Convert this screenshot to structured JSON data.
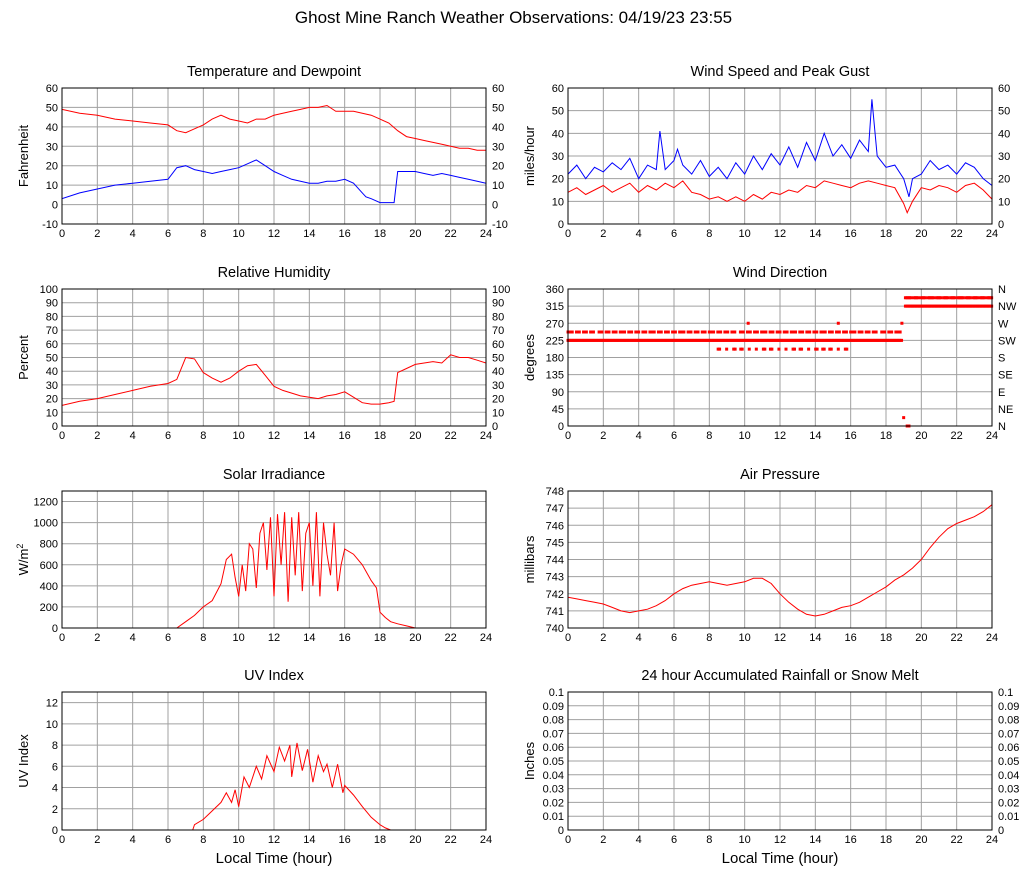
{
  "page": {
    "title": "Ghost Mine Ranch Weather Observations: 04/19/23 23:55",
    "xlabel": "Local Time (hour)"
  },
  "colors": {
    "red": "#ff0000",
    "blue": "#0000ff",
    "grid": "#a0a0a0",
    "axis": "#000000"
  },
  "chart_data": [
    {
      "id": "temp",
      "type": "line",
      "title": "Temperature and Dewpoint",
      "ylabel": "Fahrenheit",
      "xlim": [
        0,
        24
      ],
      "ylim": [
        -10,
        60
      ],
      "xticks": [
        0,
        2,
        4,
        6,
        8,
        10,
        12,
        14,
        16,
        18,
        20,
        22,
        24
      ],
      "yticks": [
        -10,
        0,
        10,
        20,
        30,
        40,
        50,
        60
      ],
      "right_axis": true,
      "grid": true,
      "series": [
        {
          "color": "#ff0000",
          "x": [
            0,
            1,
            2,
            3,
            4,
            5,
            6,
            6.5,
            7,
            7.5,
            8,
            8.5,
            9,
            9.5,
            10,
            10.5,
            11,
            11.5,
            12,
            12.5,
            13,
            13.5,
            14,
            14.5,
            15,
            15.5,
            16,
            16.5,
            17,
            17.5,
            18,
            18.5,
            19,
            19.5,
            20,
            20.5,
            21,
            21.5,
            22,
            22.5,
            23,
            23.5,
            24
          ],
          "y": [
            49,
            47,
            46,
            44,
            43,
            42,
            41,
            38,
            37,
            39,
            41,
            44,
            46,
            44,
            43,
            42,
            44,
            44,
            46,
            47,
            48,
            49,
            50,
            50,
            51,
            48,
            48,
            48,
            47,
            46,
            44,
            42,
            38,
            35,
            34,
            33,
            32,
            31,
            30,
            29,
            29,
            28,
            28
          ]
        },
        {
          "color": "#0000ff",
          "x": [
            0,
            1,
            2,
            3,
            4,
            5,
            6,
            6.5,
            7,
            7.5,
            8,
            8.5,
            9,
            9.5,
            10,
            10.5,
            11,
            11.5,
            12,
            12.5,
            13,
            13.5,
            14,
            14.5,
            15,
            15.5,
            16,
            16.5,
            17,
            17.2,
            17.5,
            18,
            18.5,
            18.8,
            19,
            19.5,
            20,
            20.5,
            21,
            21.5,
            22,
            22.5,
            23,
            23.5,
            24
          ],
          "y": [
            3,
            6,
            8,
            10,
            11,
            12,
            13,
            19,
            20,
            18,
            17,
            16,
            17,
            18,
            19,
            21,
            23,
            20,
            17,
            15,
            13,
            12,
            11,
            11,
            12,
            12,
            13,
            11,
            6,
            4,
            3,
            1,
            1,
            1,
            17,
            17,
            17,
            16,
            15,
            16,
            15,
            14,
            13,
            12,
            11
          ]
        }
      ]
    },
    {
      "id": "wind",
      "type": "line",
      "title": "Wind Speed and Peak Gust",
      "ylabel": "miles/hour",
      "xlim": [
        0,
        24
      ],
      "ylim": [
        0,
        60
      ],
      "xticks": [
        0,
        2,
        4,
        6,
        8,
        10,
        12,
        14,
        16,
        18,
        20,
        22,
        24
      ],
      "yticks": [
        0,
        10,
        20,
        30,
        40,
        50,
        60
      ],
      "right_axis": true,
      "grid": true,
      "series": [
        {
          "color": "#0000ff",
          "x": [
            0,
            0.5,
            1,
            1.5,
            2,
            2.5,
            3,
            3.5,
            4,
            4.5,
            5,
            5.2,
            5.5,
            6,
            6.2,
            6.5,
            7,
            7.5,
            8,
            8.5,
            9,
            9.5,
            10,
            10.5,
            11,
            11.5,
            12,
            12.5,
            13,
            13.5,
            14,
            14.5,
            15,
            15.5,
            16,
            16.5,
            17,
            17.2,
            17.5,
            18,
            18.5,
            19,
            19.3,
            19.5,
            20,
            20.5,
            21,
            21.5,
            22,
            22.5,
            23,
            23.5,
            24
          ],
          "y": [
            22,
            26,
            20,
            25,
            23,
            27,
            24,
            29,
            20,
            26,
            24,
            41,
            24,
            28,
            33,
            26,
            22,
            28,
            21,
            25,
            20,
            27,
            22,
            30,
            24,
            31,
            26,
            34,
            25,
            36,
            28,
            40,
            30,
            35,
            29,
            37,
            32,
            55,
            30,
            25,
            26,
            20,
            12,
            20,
            22,
            28,
            24,
            26,
            22,
            27,
            25,
            20,
            17
          ]
        },
        {
          "color": "#ff0000",
          "x": [
            0,
            0.5,
            1,
            1.5,
            2,
            2.5,
            3,
            3.5,
            4,
            4.5,
            5,
            5.5,
            6,
            6.5,
            7,
            7.5,
            8,
            8.5,
            9,
            9.5,
            10,
            10.5,
            11,
            11.5,
            12,
            12.5,
            13,
            13.5,
            14,
            14.5,
            15,
            15.5,
            16,
            16.5,
            17,
            17.5,
            18,
            18.5,
            19,
            19.2,
            19.5,
            20,
            20.5,
            21,
            21.5,
            22,
            22.5,
            23,
            23.5,
            24
          ],
          "y": [
            14,
            16,
            13,
            15,
            17,
            14,
            16,
            18,
            14,
            17,
            15,
            18,
            16,
            19,
            14,
            13,
            11,
            12,
            10,
            12,
            10,
            13,
            11,
            14,
            13,
            15,
            14,
            17,
            16,
            19,
            18,
            17,
            16,
            18,
            19,
            18,
            17,
            16,
            9,
            5,
            10,
            16,
            15,
            17,
            16,
            14,
            17,
            18,
            15,
            11
          ]
        }
      ]
    },
    {
      "id": "rh",
      "type": "line",
      "title": "Relative Humidity",
      "ylabel": "Percent",
      "xlim": [
        0,
        24
      ],
      "ylim": [
        0,
        100
      ],
      "xticks": [
        0,
        2,
        4,
        6,
        8,
        10,
        12,
        14,
        16,
        18,
        20,
        22,
        24
      ],
      "yticks": [
        0,
        10,
        20,
        30,
        40,
        50,
        60,
        70,
        80,
        90,
        100
      ],
      "right_axis": true,
      "grid": true,
      "series": [
        {
          "color": "#ff0000",
          "x": [
            0,
            1,
            2,
            3,
            4,
            5,
            6,
            6.5,
            7,
            7.5,
            8,
            8.5,
            9,
            9.5,
            10,
            10.5,
            11,
            11.5,
            12,
            12.5,
            13,
            13.5,
            14,
            14.5,
            15,
            15.5,
            16,
            16.5,
            17,
            17.5,
            18,
            18.5,
            18.8,
            19,
            19.5,
            20,
            20.5,
            21,
            21.5,
            22,
            22.5,
            23,
            23.5,
            24
          ],
          "y": [
            15,
            18,
            20,
            23,
            26,
            29,
            31,
            34,
            50,
            49,
            39,
            35,
            32,
            35,
            40,
            44,
            45,
            37,
            29,
            26,
            24,
            22,
            21,
            20,
            22,
            23,
            25,
            21,
            17,
            16,
            16,
            17,
            18,
            39,
            42,
            45,
            46,
            47,
            46,
            52,
            50,
            50,
            48,
            46
          ]
        }
      ]
    },
    {
      "id": "wdir",
      "type": "scatter",
      "title": "Wind Direction",
      "ylabel": "degrees",
      "xlim": [
        0,
        24
      ],
      "ylim": [
        0,
        360
      ],
      "xticks": [
        0,
        2,
        4,
        6,
        8,
        10,
        12,
        14,
        16,
        18,
        20,
        22,
        24
      ],
      "yticks": [
        0,
        45,
        90,
        135,
        180,
        225,
        270,
        315,
        360
      ],
      "right_labels": [
        "N",
        "NE",
        "E",
        "SE",
        "S",
        "SW",
        "W",
        "NW",
        "N"
      ],
      "grid": true,
      "series": [
        {
          "color": "#ff0000",
          "bands": [
            {
              "y": 225,
              "x0": 0,
              "x1": 18.9
            },
            {
              "y": 247,
              "x0": 0,
              "x1": 18.9,
              "density": 0.6
            },
            {
              "y": 202,
              "x0": 8.5,
              "x1": 15.8,
              "density": 0.3
            },
            {
              "y": 315,
              "x0": 19.1,
              "x1": 24
            },
            {
              "y": 337,
              "x0": 19.1,
              "x1": 24,
              "density": 0.8
            }
          ],
          "x": [
            10.2,
            15.3,
            18.9,
            19.0,
            19.2,
            19.3,
            18.8
          ],
          "y": [
            270,
            270,
            270,
            22,
            0,
            0,
            247
          ]
        }
      ]
    },
    {
      "id": "solar",
      "type": "line",
      "title": "Solar Irradiance",
      "ylabel": "W/m",
      "ylabel_sup": "2",
      "xlim": [
        0,
        24
      ],
      "ylim": [
        0,
        1300
      ],
      "xticks": [
        0,
        2,
        4,
        6,
        8,
        10,
        12,
        14,
        16,
        18,
        20,
        22,
        24
      ],
      "yticks": [
        0,
        200,
        400,
        600,
        800,
        1000,
        1200
      ],
      "right_axis": false,
      "grid": true,
      "series": [
        {
          "color": "#ff0000",
          "x": [
            0,
            6.5,
            7,
            7.5,
            8,
            8.5,
            9,
            9.3,
            9.6,
            9.8,
            10,
            10.2,
            10.4,
            10.6,
            10.8,
            11,
            11.2,
            11.4,
            11.6,
            11.8,
            12,
            12.2,
            12.4,
            12.6,
            12.8,
            13,
            13.2,
            13.4,
            13.6,
            13.8,
            14,
            14.2,
            14.4,
            14.6,
            14.8,
            15,
            15.2,
            15.4,
            15.6,
            15.8,
            16,
            16.5,
            17,
            17.5,
            17.8,
            18,
            18.3,
            18.6,
            19,
            19.5,
            20,
            24
          ],
          "y": [
            0,
            0,
            60,
            120,
            200,
            260,
            420,
            650,
            700,
            480,
            300,
            600,
            350,
            800,
            750,
            380,
            900,
            1000,
            550,
            1050,
            300,
            1080,
            600,
            1100,
            250,
            1050,
            500,
            1100,
            350,
            900,
            1000,
            400,
            1100,
            300,
            1000,
            700,
            500,
            1000,
            350,
            600,
            750,
            700,
            600,
            450,
            380,
            150,
            100,
            60,
            40,
            20,
            0,
            0
          ]
        }
      ]
    },
    {
      "id": "pressure",
      "type": "line",
      "title": "Air Pressure",
      "ylabel": "millibars",
      "xlim": [
        0,
        24
      ],
      "ylim": [
        740,
        748
      ],
      "xticks": [
        0,
        2,
        4,
        6,
        8,
        10,
        12,
        14,
        16,
        18,
        20,
        22,
        24
      ],
      "yticks": [
        740,
        741,
        742,
        743,
        744,
        745,
        746,
        747,
        748
      ],
      "right_axis": false,
      "grid": true,
      "series": [
        {
          "color": "#ff0000",
          "x": [
            0,
            0.5,
            1,
            1.5,
            2,
            2.5,
            3,
            3.5,
            4,
            4.5,
            5,
            5.5,
            6,
            6.5,
            7,
            7.5,
            8,
            8.5,
            9,
            9.5,
            10,
            10.5,
            11,
            11.5,
            12,
            12.5,
            13,
            13.5,
            14,
            14.5,
            15,
            15.5,
            16,
            16.5,
            17,
            17.5,
            18,
            18.5,
            19,
            19.5,
            20,
            20.5,
            21,
            21.5,
            22,
            22.5,
            23,
            23.5,
            24
          ],
          "y": [
            741.8,
            741.7,
            741.6,
            741.5,
            741.4,
            741.2,
            741.0,
            740.9,
            741.0,
            741.1,
            741.3,
            741.6,
            742.0,
            742.3,
            742.5,
            742.6,
            742.7,
            742.6,
            742.5,
            742.6,
            742.7,
            742.9,
            742.9,
            742.6,
            742.0,
            741.5,
            741.1,
            740.8,
            740.7,
            740.8,
            741.0,
            741.2,
            741.3,
            741.5,
            741.8,
            742.1,
            742.4,
            742.8,
            743.1,
            743.5,
            744.0,
            744.7,
            745.3,
            745.8,
            746.1,
            746.3,
            746.5,
            746.8,
            747.2
          ]
        }
      ]
    },
    {
      "id": "uv",
      "type": "line",
      "title": "UV Index",
      "ylabel": "UV Index",
      "xlim": [
        0,
        24
      ],
      "ylim": [
        0,
        13
      ],
      "xticks": [
        0,
        2,
        4,
        6,
        8,
        10,
        12,
        14,
        16,
        18,
        20,
        22,
        24
      ],
      "yticks": [
        0,
        2,
        4,
        6,
        8,
        10,
        12
      ],
      "right_axis": false,
      "grid": true,
      "series": [
        {
          "color": "#ff0000",
          "x": [
            0,
            7.4,
            7.5,
            8,
            8.5,
            9,
            9.3,
            9.6,
            9.8,
            10,
            10.3,
            10.6,
            11,
            11.3,
            11.6,
            12,
            12.3,
            12.6,
            12.9,
            13,
            13.3,
            13.6,
            13.9,
            14.2,
            14.5,
            14.8,
            15,
            15.3,
            15.6,
            15.9,
            16,
            16.5,
            17,
            17.5,
            18,
            18.3,
            18.6,
            24
          ],
          "y": [
            0,
            0,
            0.5,
            1,
            1.8,
            2.6,
            3.5,
            2.6,
            3.8,
            2.2,
            5,
            4,
            6,
            4.8,
            7,
            5.5,
            7.8,
            6.5,
            8,
            5,
            8.2,
            5.6,
            7.6,
            4.5,
            7,
            5.5,
            6.2,
            4,
            6.2,
            3.5,
            4.2,
            3.3,
            2.2,
            1.2,
            0.5,
            0.2,
            0,
            0
          ]
        }
      ]
    },
    {
      "id": "rain",
      "type": "line",
      "title": "24 hour Accumulated Rainfall or Snow Melt",
      "ylabel": "Inches",
      "xlim": [
        0,
        24
      ],
      "ylim": [
        0,
        0.1
      ],
      "xticks": [
        0,
        2,
        4,
        6,
        8,
        10,
        12,
        14,
        16,
        18,
        20,
        22,
        24
      ],
      "yticks": [
        0,
        0.01,
        0.02,
        0.03,
        0.04,
        0.05,
        0.06,
        0.07,
        0.08,
        0.09,
        0.1
      ],
      "right_axis": true,
      "grid": true,
      "series": [
        {
          "color": "#ff0000",
          "x": [
            0,
            24
          ],
          "y": [
            0,
            0
          ]
        }
      ]
    }
  ]
}
